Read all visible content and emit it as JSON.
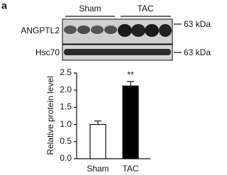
{
  "panel_label": "a",
  "blot": {
    "groups": [
      "Sham",
      "TAC"
    ],
    "rows": [
      {
        "label": "ANGPTL2",
        "marker": "63 kDa"
      },
      {
        "label": "Hsc70",
        "marker": "63 kDa"
      }
    ]
  },
  "chart_data": {
    "type": "bar",
    "ylabel": "Relative protein level",
    "categories": [
      "Sham",
      "TAC"
    ],
    "values": [
      1.0,
      2.12
    ],
    "errors": [
      0.1,
      0.13
    ],
    "colors": [
      "#ffffff",
      "#000000"
    ],
    "annotations": [
      {
        "text": "**",
        "category": 1
      }
    ],
    "ylim": [
      0,
      2.5
    ],
    "yticks": [
      {
        "value": 0,
        "label": "0.0"
      },
      0.5,
      {
        "value": 1,
        "label": "1.0"
      },
      1.5,
      {
        "value": 2,
        "label": "2.0"
      },
      2.5
    ]
  }
}
